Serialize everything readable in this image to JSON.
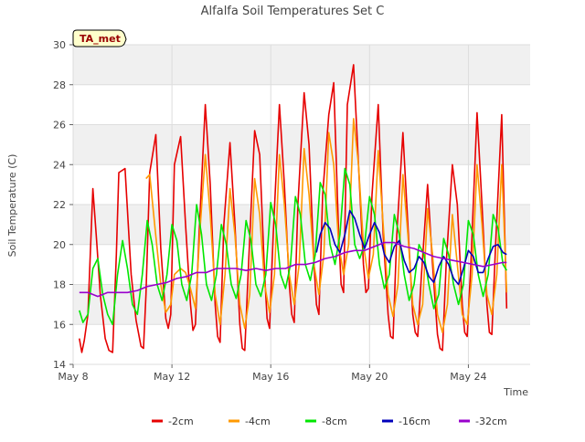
{
  "chart_data": {
    "type": "line",
    "title": "Alfalfa Soil Temperatures Set C",
    "xlabel": "Time",
    "ylabel": "Soil Temperature (C)",
    "ylim": [
      14,
      30
    ],
    "xlim": [
      0,
      18.5
    ],
    "yticks": [
      14,
      16,
      18,
      20,
      22,
      24,
      26,
      28,
      30
    ],
    "xticks": [
      {
        "label": "May 8",
        "value": 0
      },
      {
        "label": "May 12",
        "value": 4
      },
      {
        "label": "May 16",
        "value": 8
      },
      {
        "label": "May 20",
        "value": 12
      },
      {
        "label": "May 24",
        "value": 16
      }
    ],
    "grid": true,
    "banded_background": true,
    "annotation": "TA_met",
    "legend_position": "bottom",
    "series": [
      {
        "name": "-2cm",
        "color": "#e60000",
        "x": [
          0.25,
          0.35,
          0.45,
          0.6,
          0.8,
          0.95,
          1.1,
          1.3,
          1.45,
          1.6,
          1.75,
          1.85,
          2.1,
          2.35,
          2.55,
          2.75,
          2.85,
          2.95,
          3.1,
          3.35,
          3.55,
          3.75,
          3.85,
          3.95,
          4.1,
          4.35,
          4.55,
          4.75,
          4.85,
          4.95,
          5.1,
          5.35,
          5.55,
          5.75,
          5.85,
          5.95,
          6.1,
          6.35,
          6.55,
          6.75,
          6.85,
          6.95,
          7.1,
          7.35,
          7.55,
          7.75,
          7.85,
          7.95,
          8.1,
          8.35,
          8.55,
          8.75,
          8.85,
          8.95,
          9.1,
          9.35,
          9.55,
          9.75,
          9.85,
          9.95,
          10.1,
          10.35,
          10.55,
          10.75,
          10.85,
          10.95,
          11.1,
          11.35,
          11.55,
          11.75,
          11.85,
          11.95,
          12.1,
          12.35,
          12.55,
          12.75,
          12.85,
          12.95,
          13.1,
          13.35,
          13.55,
          13.75,
          13.85,
          13.95,
          14.1,
          14.35,
          14.55,
          14.75,
          14.85,
          14.95,
          15.1,
          15.35,
          15.55,
          15.75,
          15.85,
          15.95,
          16.1,
          16.35,
          16.55,
          16.75,
          16.85,
          16.95,
          17.1,
          17.35,
          17.55
        ],
        "y": [
          15.3,
          14.6,
          15.2,
          16.5,
          22.8,
          20.2,
          17.5,
          15.3,
          14.7,
          14.6,
          19.5,
          23.6,
          23.8,
          18.5,
          16.2,
          14.9,
          14.8,
          17.5,
          23.6,
          25.5,
          19.8,
          16.3,
          15.8,
          16.5,
          24.0,
          25.4,
          21.0,
          17.0,
          15.7,
          16.0,
          20.5,
          27.0,
          23.0,
          17.0,
          15.4,
          15.1,
          21.0,
          25.1,
          21.0,
          16.0,
          14.8,
          14.7,
          19.0,
          25.7,
          24.5,
          18.5,
          16.3,
          15.8,
          20.5,
          27.0,
          23.0,
          18.0,
          16.5,
          16.1,
          22.0,
          27.6,
          25.0,
          19.0,
          17.0,
          16.5,
          22.5,
          26.5,
          28.1,
          20.5,
          18.0,
          17.6,
          27.0,
          29.0,
          24.0,
          19.0,
          17.6,
          17.8,
          22.5,
          27.0,
          20.5,
          16.5,
          15.4,
          15.3,
          20.5,
          25.6,
          21.0,
          16.5,
          15.6,
          15.4,
          18.5,
          23.0,
          19.0,
          15.5,
          14.8,
          14.7,
          19.0,
          24.0,
          22.0,
          17.0,
          15.6,
          15.4,
          19.0,
          26.6,
          22.0,
          17.0,
          15.6,
          15.5,
          20.0,
          26.5,
          16.8
        ]
      },
      {
        "name": "-4cm",
        "color": "#ff9900",
        "x": [
          2.95,
          3.1,
          3.3,
          3.55,
          3.75,
          3.95,
          4.1,
          4.35,
          4.55,
          4.75,
          4.95,
          5.15,
          5.35,
          5.55,
          5.75,
          5.95,
          6.15,
          6.35,
          6.55,
          6.75,
          6.95,
          7.15,
          7.35,
          7.55,
          7.75,
          7.95,
          8.15,
          8.35,
          8.55,
          8.75,
          8.95,
          9.15,
          9.35,
          9.55,
          9.75,
          9.95,
          10.15,
          10.35,
          10.55,
          10.75,
          10.95,
          11.15,
          11.35,
          11.55,
          11.75,
          11.95,
          12.15,
          12.35,
          12.55,
          12.75,
          12.95,
          13.15,
          13.35,
          13.55,
          13.75,
          13.95,
          14.15,
          14.35,
          14.55,
          14.75,
          14.95,
          15.15,
          15.35,
          15.55,
          15.75,
          15.95,
          16.15,
          16.35,
          16.55,
          16.75,
          16.95,
          17.15,
          17.35,
          17.55
        ],
        "y": [
          23.3,
          23.5,
          21.0,
          18.0,
          16.6,
          17.0,
          18.5,
          18.8,
          18.6,
          17.8,
          16.8,
          21.0,
          24.5,
          21.5,
          17.5,
          16.0,
          18.5,
          22.8,
          20.5,
          17.0,
          15.8,
          17.5,
          23.3,
          21.5,
          18.0,
          16.6,
          18.5,
          24.5,
          22.0,
          18.5,
          17.0,
          19.0,
          24.8,
          22.5,
          19.0,
          17.5,
          19.5,
          25.6,
          24.0,
          20.0,
          18.5,
          20.0,
          26.3,
          24.0,
          20.0,
          18.3,
          19.5,
          24.7,
          21.0,
          17.5,
          16.4,
          18.0,
          23.5,
          20.5,
          17.0,
          16.0,
          17.0,
          21.8,
          19.5,
          16.5,
          15.6,
          17.0,
          21.5,
          19.0,
          16.5,
          16.0,
          18.5,
          24.0,
          21.0,
          17.5,
          16.5,
          18.5,
          24.0,
          17.6
        ]
      },
      {
        "name": "-8cm",
        "color": "#00e600",
        "x": [
          0.25,
          0.4,
          0.6,
          0.8,
          1.0,
          1.2,
          1.4,
          1.6,
          1.8,
          2.0,
          2.2,
          2.4,
          2.6,
          2.8,
          3.0,
          3.2,
          3.4,
          3.6,
          3.8,
          4.0,
          4.2,
          4.4,
          4.6,
          4.8,
          5.0,
          5.2,
          5.4,
          5.6,
          5.8,
          6.0,
          6.2,
          6.4,
          6.6,
          6.8,
          7.0,
          7.2,
          7.4,
          7.6,
          7.8,
          8.0,
          8.2,
          8.4,
          8.6,
          8.8,
          9.0,
          9.2,
          9.4,
          9.6,
          9.8,
          10.0,
          10.2,
          10.4,
          10.6,
          10.8,
          11.0,
          11.2,
          11.4,
          11.6,
          11.8,
          12.0,
          12.2,
          12.4,
          12.6,
          12.8,
          13.0,
          13.2,
          13.4,
          13.6,
          13.8,
          14.0,
          14.2,
          14.4,
          14.6,
          14.8,
          15.0,
          15.2,
          15.4,
          15.6,
          15.8,
          16.0,
          16.2,
          16.4,
          16.6,
          16.8,
          17.0,
          17.2,
          17.4,
          17.55
        ],
        "y": [
          16.7,
          16.1,
          16.5,
          18.8,
          19.3,
          17.5,
          16.5,
          16.0,
          18.5,
          20.2,
          18.8,
          17.0,
          16.5,
          18.5,
          21.2,
          20.0,
          18.0,
          17.2,
          18.5,
          21.0,
          20.2,
          18.0,
          17.2,
          18.5,
          22.0,
          20.5,
          18.0,
          17.2,
          18.5,
          21.0,
          20.0,
          18.0,
          17.3,
          18.5,
          21.2,
          20.2,
          18.0,
          17.4,
          18.5,
          22.1,
          21.0,
          18.5,
          17.8,
          19.0,
          22.4,
          21.5,
          19.0,
          18.2,
          19.5,
          23.1,
          22.5,
          20.0,
          19.0,
          20.5,
          23.8,
          23.0,
          20.0,
          19.3,
          20.0,
          22.4,
          21.5,
          19.0,
          17.8,
          18.5,
          21.5,
          20.5,
          18.5,
          17.2,
          18.0,
          20.0,
          19.5,
          18.0,
          16.8,
          17.5,
          20.3,
          19.5,
          18.0,
          17.0,
          18.0,
          21.2,
          20.5,
          18.5,
          17.4,
          18.5,
          21.5,
          20.8,
          19.0,
          18.7
        ]
      },
      {
        "name": "-16cm",
        "color": "#0000bb",
        "x": [
          9.85,
          10.0,
          10.2,
          10.4,
          10.6,
          10.8,
          11.0,
          11.2,
          11.4,
          11.6,
          11.8,
          12.0,
          12.2,
          12.4,
          12.6,
          12.8,
          13.0,
          13.2,
          13.4,
          13.6,
          13.8,
          14.0,
          14.2,
          14.4,
          14.6,
          14.8,
          15.0,
          15.2,
          15.4,
          15.6,
          15.8,
          16.0,
          16.2,
          16.4,
          16.6,
          16.8,
          17.0,
          17.2,
          17.4,
          17.55
        ],
        "y": [
          19.6,
          20.5,
          21.1,
          20.8,
          20.0,
          19.6,
          20.5,
          21.7,
          21.3,
          20.5,
          19.8,
          20.5,
          21.1,
          20.6,
          19.5,
          19.1,
          19.9,
          20.2,
          19.2,
          18.6,
          18.8,
          19.4,
          19.1,
          18.4,
          18.1,
          18.9,
          19.4,
          19.0,
          18.3,
          18.0,
          18.8,
          19.7,
          19.4,
          18.6,
          18.6,
          19.3,
          19.9,
          20.0,
          19.6,
          19.5
        ]
      },
      {
        "name": "-32cm",
        "color": "#9900cc",
        "x": [
          0.25,
          0.6,
          1.0,
          1.4,
          1.8,
          2.2,
          2.6,
          3.0,
          3.4,
          3.8,
          4.2,
          4.6,
          5.0,
          5.4,
          5.8,
          6.2,
          6.6,
          7.0,
          7.4,
          7.8,
          8.2,
          8.6,
          9.0,
          9.4,
          9.8,
          10.2,
          10.6,
          11.0,
          11.4,
          11.8,
          12.2,
          12.6,
          13.0,
          13.4,
          13.8,
          14.2,
          14.6,
          15.0,
          15.4,
          15.8,
          16.2,
          16.6,
          17.0,
          17.4,
          17.55
        ],
        "y": [
          17.6,
          17.6,
          17.4,
          17.6,
          17.6,
          17.6,
          17.7,
          17.9,
          18.0,
          18.1,
          18.3,
          18.4,
          18.6,
          18.6,
          18.8,
          18.8,
          18.8,
          18.7,
          18.8,
          18.7,
          18.8,
          18.8,
          19.0,
          19.0,
          19.1,
          19.3,
          19.4,
          19.6,
          19.7,
          19.7,
          19.9,
          20.1,
          20.1,
          19.9,
          19.8,
          19.6,
          19.4,
          19.3,
          19.2,
          19.1,
          19.0,
          18.9,
          19.0,
          19.1,
          19.1
        ]
      }
    ]
  }
}
